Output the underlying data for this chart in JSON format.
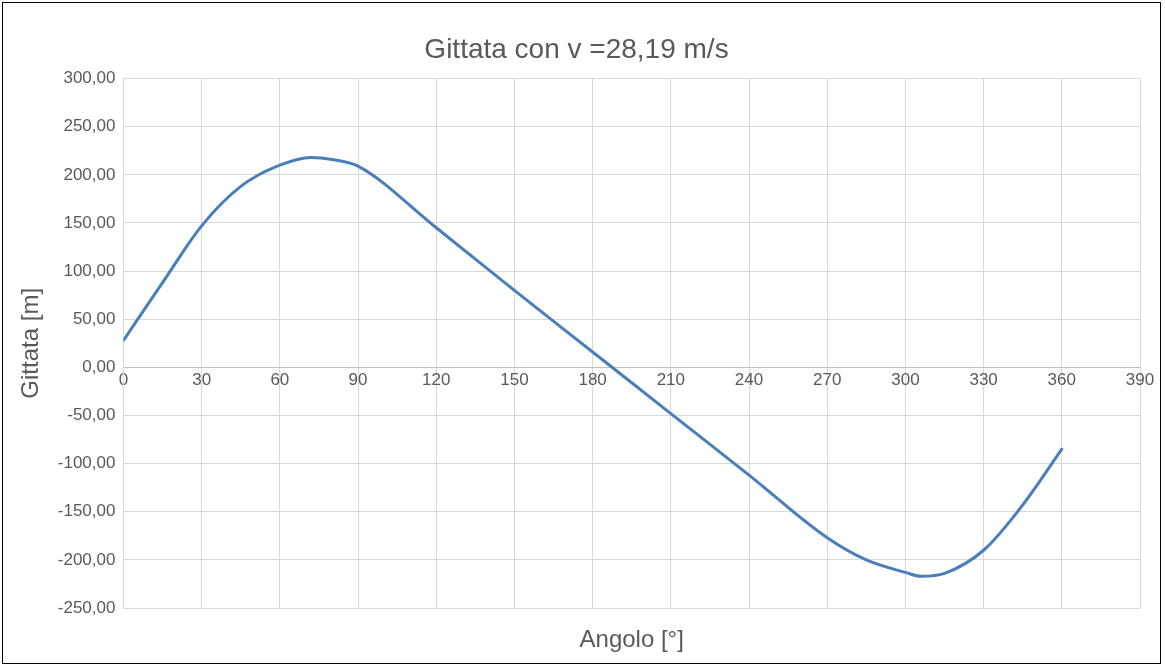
{
  "chart_data": {
    "type": "line",
    "title": "Gittata con v =28,19 m/s",
    "xlabel": "Angolo [°]",
    "ylabel": "Gittata [m]",
    "series": [
      {
        "color": "#4a7ebb",
        "x": [
          0,
          15,
          30,
          45,
          60,
          72,
          80,
          90,
          120,
          150,
          180,
          210,
          240,
          270,
          285,
          300,
          306,
          315,
          330,
          345,
          360
        ],
        "values": [
          28,
          88,
          147,
          188,
          210,
          218,
          216,
          209,
          145,
          80,
          16,
          -48,
          -112,
          -177,
          -200,
          -213,
          -217,
          -214,
          -190,
          -143,
          -85
        ]
      }
    ],
    "xlim": [
      0,
      390
    ],
    "xticks": [
      0,
      30,
      60,
      90,
      120,
      150,
      180,
      210,
      240,
      270,
      300,
      330,
      360,
      390
    ],
    "ylim": [
      -250,
      300
    ],
    "yticks": [
      {
        "value": -250,
        "label": "-250,00"
      },
      {
        "value": -200,
        "label": "-200,00"
      },
      {
        "value": -150,
        "label": "-150,00"
      },
      {
        "value": -100,
        "label": "-100,00"
      },
      {
        "value": -50,
        "label": "-50,00"
      },
      {
        "value": 0,
        "label": "0,00"
      },
      {
        "value": 50,
        "label": "50,00"
      },
      {
        "value": 100,
        "label": "100,00"
      },
      {
        "value": 150,
        "label": "150,00"
      },
      {
        "value": 200,
        "label": "200,00"
      },
      {
        "value": 250,
        "label": "250,00"
      },
      {
        "value": 300,
        "label": "300,00"
      }
    ],
    "grid": true,
    "legend": false,
    "marker": "none",
    "line_style": "solid"
  }
}
